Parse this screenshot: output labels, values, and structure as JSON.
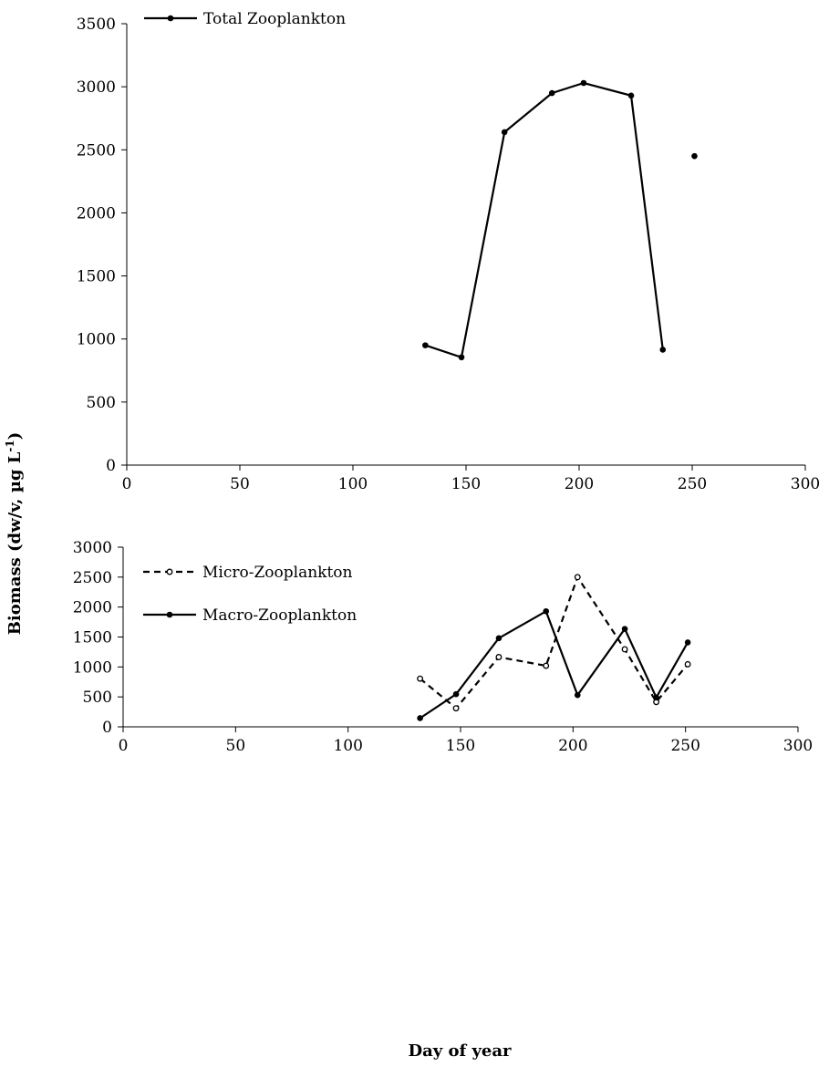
{
  "ylabel": "Biomass (dw/v, µg L-1)",
  "ylabel_main": "Biomass (dw/v, µg L",
  "ylabel_sup": "-1",
  "ylabel_close": ")",
  "xlabel": "Day of year",
  "colors": {
    "line": "#000000",
    "axis": "#000000",
    "background": "#ffffff"
  },
  "chart_data": [
    {
      "type": "line",
      "title": "",
      "xlim": [
        0,
        300
      ],
      "ylim": [
        0,
        3500
      ],
      "x_ticks": [
        0,
        50,
        100,
        150,
        200,
        250,
        300
      ],
      "y_ticks": [
        0,
        500,
        1000,
        1500,
        2000,
        2500,
        3000,
        3500
      ],
      "grid": false,
      "legend": "top-left",
      "series": [
        {
          "name": "Total Zooplankton",
          "style": "solid",
          "marker": "filled-circle",
          "segments": [
            [
              [
                132,
                950
              ],
              [
                148,
                855
              ],
              [
                167,
                2640
              ],
              [
                188,
                2950
              ],
              [
                202,
                3030
              ],
              [
                223,
                2930
              ],
              [
                237,
                915
              ]
            ],
            [
              [
                251,
                2450
              ]
            ]
          ]
        }
      ]
    },
    {
      "type": "line",
      "title": "",
      "xlim": [
        0,
        300
      ],
      "ylim": [
        0,
        3000
      ],
      "x_ticks": [
        0,
        50,
        100,
        150,
        200,
        250,
        300
      ],
      "y_ticks": [
        0,
        500,
        1000,
        1500,
        2000,
        2500,
        3000
      ],
      "grid": false,
      "legend": "top-left",
      "series": [
        {
          "name": "Micro-Zooplankton",
          "style": "dashed",
          "marker": "open-circle",
          "segments": [
            [
              [
                132,
                805
              ],
              [
                148,
                310
              ],
              [
                167,
                1165
              ],
              [
                188,
                1020
              ],
              [
                202,
                2500
              ],
              [
                223,
                1295
              ],
              [
                237,
                415
              ],
              [
                251,
                1045
              ]
            ]
          ]
        },
        {
          "name": "Macro-Zooplankton",
          "style": "solid",
          "marker": "filled-circle",
          "segments": [
            [
              [
                132,
                145
              ],
              [
                148,
                545
              ],
              [
                167,
                1480
              ],
              [
                188,
                1930
              ],
              [
                202,
                530
              ],
              [
                223,
                1635
              ],
              [
                237,
                490
              ],
              [
                251,
                1410
              ]
            ]
          ]
        }
      ]
    }
  ]
}
